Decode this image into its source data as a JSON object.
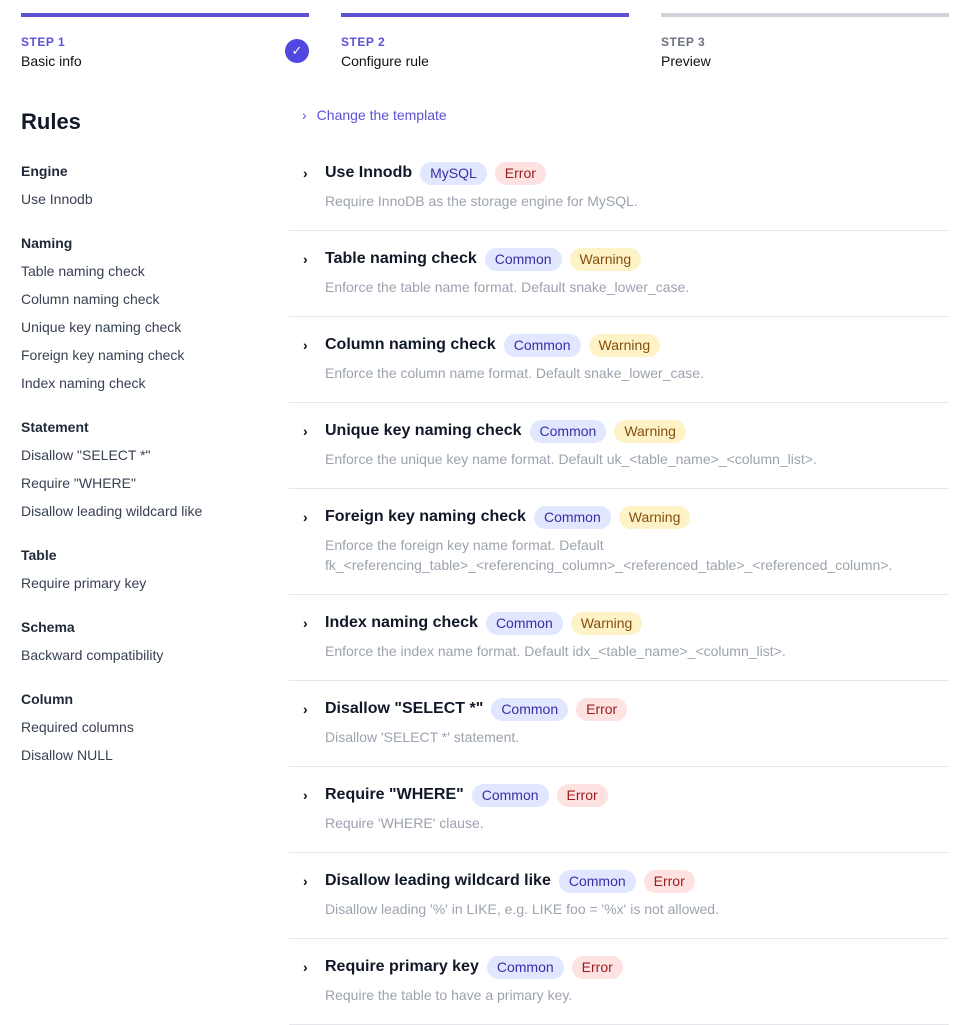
{
  "steps": [
    {
      "num": "STEP 1",
      "title": "Basic info",
      "done": true
    },
    {
      "num": "STEP 2",
      "title": "Configure rule",
      "done": false
    },
    {
      "num": "STEP 3",
      "title": "Preview",
      "done": false
    }
  ],
  "sidebar": {
    "title": "Rules",
    "groups": [
      {
        "header": "Engine",
        "items": [
          "Use Innodb"
        ]
      },
      {
        "header": "Naming",
        "items": [
          "Table naming check",
          "Column naming check",
          "Unique key naming check",
          "Foreign key naming check",
          "Index naming check"
        ]
      },
      {
        "header": "Statement",
        "items": [
          "Disallow \"SELECT *\"",
          "Require \"WHERE\"",
          "Disallow leading wildcard like"
        ]
      },
      {
        "header": "Table",
        "items": [
          "Require primary key"
        ]
      },
      {
        "header": "Schema",
        "items": [
          "Backward compatibility"
        ]
      },
      {
        "header": "Column",
        "items": [
          "Required columns",
          "Disallow NULL"
        ]
      }
    ]
  },
  "change_template": "Change the template",
  "rules": [
    {
      "name": "Use Innodb",
      "engine": "MySQL",
      "level": "Error",
      "desc": [
        "Require InnoDB as the storage engine for MySQL."
      ]
    },
    {
      "name": "Table naming check",
      "engine": "Common",
      "level": "Warning",
      "desc": [
        "Enforce the table name format. Default snake_lower_case."
      ]
    },
    {
      "name": "Column naming check",
      "engine": "Common",
      "level": "Warning",
      "desc": [
        "Enforce the column name format. Default snake_lower_case."
      ]
    },
    {
      "name": "Unique key naming check",
      "engine": "Common",
      "level": "Warning",
      "desc": [
        "Enforce the unique key name format. Default uk_<table_name>_<column_list>."
      ]
    },
    {
      "name": "Foreign key naming check",
      "engine": "Common",
      "level": "Warning",
      "desc": [
        "Enforce the foreign key name format. Default",
        "fk_<referencing_table>_<referencing_column>_<referenced_table>_<referenced_column>."
      ]
    },
    {
      "name": "Index naming check",
      "engine": "Common",
      "level": "Warning",
      "desc": [
        "Enforce the index name format. Default idx_<table_name>_<column_list>."
      ]
    },
    {
      "name": "Disallow \"SELECT *\"",
      "engine": "Common",
      "level": "Error",
      "desc": [
        "Disallow 'SELECT *' statement."
      ]
    },
    {
      "name": "Require \"WHERE\"",
      "engine": "Common",
      "level": "Error",
      "desc": [
        "Require 'WHERE' clause."
      ]
    },
    {
      "name": "Disallow leading wildcard like",
      "engine": "Common",
      "level": "Error",
      "desc": [
        "Disallow leading '%' in LIKE, e.g. LIKE foo = '%x' is not allowed."
      ]
    },
    {
      "name": "Require primary key",
      "engine": "Common",
      "level": "Error",
      "desc": [
        "Require the table to have a primary key."
      ]
    }
  ],
  "colors": {
    "accent": "#5b52d6",
    "error_bg": "#fee2e2",
    "warning_bg": "#fef3c7",
    "engine_bg": "#e0e7ff"
  }
}
